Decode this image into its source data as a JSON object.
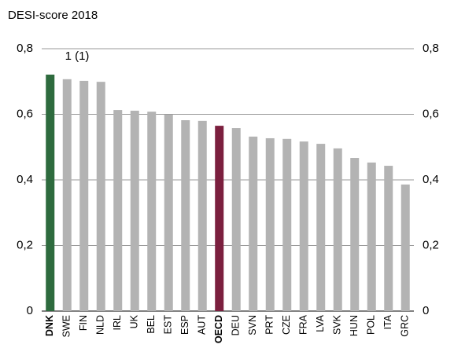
{
  "chart_data": {
    "type": "bar",
    "title": "DESI-score 2018",
    "annotation": "1 (1)",
    "categories": [
      "DNK",
      "SWE",
      "FIN",
      "NLD",
      "IRL",
      "UK",
      "BEL",
      "EST",
      "ESP",
      "AUT",
      "OECD",
      "DEU",
      "SVN",
      "PRT",
      "CZE",
      "FRA",
      "LVA",
      "SVK",
      "HUN",
      "POL",
      "ITA",
      "GRC"
    ],
    "values": [
      0.721,
      0.707,
      0.702,
      0.699,
      0.613,
      0.611,
      0.608,
      0.599,
      0.582,
      0.58,
      0.565,
      0.558,
      0.532,
      0.527,
      0.525,
      0.517,
      0.51,
      0.496,
      0.467,
      0.453,
      0.443,
      0.386
    ],
    "colors": [
      "#2e6b3e",
      "#b3b3b3",
      "#b3b3b3",
      "#b3b3b3",
      "#b3b3b3",
      "#b3b3b3",
      "#b3b3b3",
      "#b3b3b3",
      "#b3b3b3",
      "#b3b3b3",
      "#7b1f3e",
      "#b3b3b3",
      "#b3b3b3",
      "#b3b3b3",
      "#b3b3b3",
      "#b3b3b3",
      "#b3b3b3",
      "#b3b3b3",
      "#b3b3b3",
      "#b3b3b3",
      "#b3b3b3",
      "#b3b3b3"
    ],
    "bold": [
      true,
      false,
      false,
      false,
      false,
      false,
      false,
      false,
      false,
      false,
      true,
      false,
      false,
      false,
      false,
      false,
      false,
      false,
      false,
      false,
      false,
      false
    ],
    "ylim": [
      0,
      0.8
    ],
    "yticks": [
      0,
      {
        "value": 0.2,
        "label": "0,2"
      },
      {
        "value": 0.4,
        "label": "0,4"
      },
      {
        "value": 0.6,
        "label": "0,6"
      },
      {
        "value": 0.8,
        "label": "0,8"
      }
    ],
    "grid": true
  }
}
